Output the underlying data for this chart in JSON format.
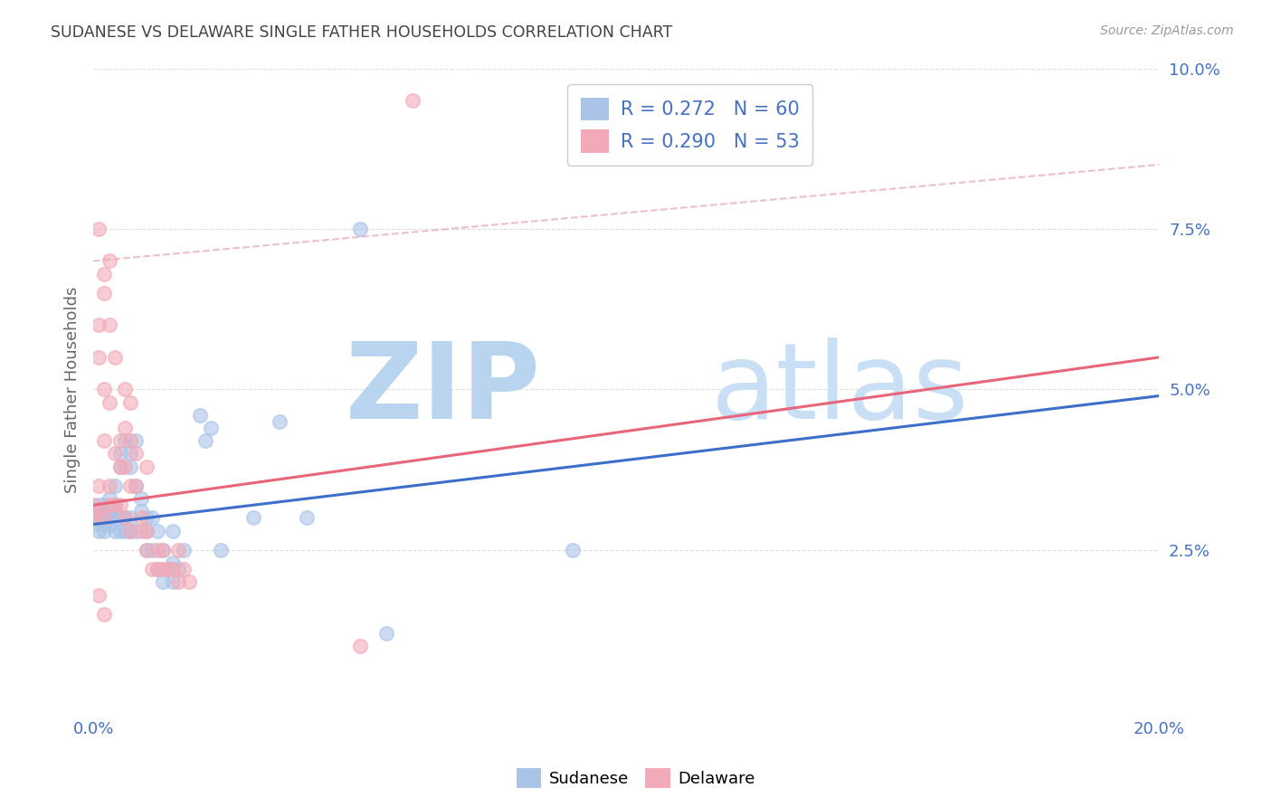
{
  "title": "SUDANESE VS DELAWARE SINGLE FATHER HOUSEHOLDS CORRELATION CHART",
  "source": "Source: ZipAtlas.com",
  "ylabel": "Single Father Households",
  "xlim": [
    0,
    0.2
  ],
  "ylim": [
    0,
    0.1
  ],
  "sudanese_color": "#aac4e8",
  "delaware_color": "#f2aab8",
  "sudanese_line_color": "#3b6fc9",
  "delaware_line_color": "#e8657a",
  "dashed_line_color": "#f2aab8",
  "sudanese_R": 0.272,
  "sudanese_N": 60,
  "delaware_R": 0.29,
  "delaware_N": 53,
  "watermark_zip": "ZIP",
  "watermark_atlas": "atlas",
  "watermark_color": "#cce0f5",
  "legend_labels": [
    "Sudanese",
    "Delaware"
  ],
  "tick_color": "#4472c4",
  "title_color": "#444444",
  "ylabel_color": "#666666",
  "source_color": "#999999",
  "sudanese_scatter": [
    [
      0.0,
      0.031
    ],
    [
      0.0,
      0.029
    ],
    [
      0.0,
      0.03
    ],
    [
      0.001,
      0.032
    ],
    [
      0.001,
      0.028
    ],
    [
      0.001,
      0.03
    ],
    [
      0.001,
      0.031
    ],
    [
      0.002,
      0.028
    ],
    [
      0.002,
      0.032
    ],
    [
      0.002,
      0.03
    ],
    [
      0.002,
      0.029
    ],
    [
      0.003,
      0.031
    ],
    [
      0.003,
      0.033
    ],
    [
      0.003,
      0.029
    ],
    [
      0.003,
      0.03
    ],
    [
      0.004,
      0.035
    ],
    [
      0.004,
      0.028
    ],
    [
      0.004,
      0.031
    ],
    [
      0.004,
      0.032
    ],
    [
      0.005,
      0.04
    ],
    [
      0.005,
      0.03
    ],
    [
      0.005,
      0.028
    ],
    [
      0.005,
      0.038
    ],
    [
      0.006,
      0.042
    ],
    [
      0.006,
      0.03
    ],
    [
      0.006,
      0.028
    ],
    [
      0.007,
      0.028
    ],
    [
      0.007,
      0.03
    ],
    [
      0.007,
      0.04
    ],
    [
      0.007,
      0.038
    ],
    [
      0.008,
      0.035
    ],
    [
      0.008,
      0.042
    ],
    [
      0.008,
      0.028
    ],
    [
      0.009,
      0.033
    ],
    [
      0.009,
      0.031
    ],
    [
      0.01,
      0.028
    ],
    [
      0.01,
      0.03
    ],
    [
      0.01,
      0.025
    ],
    [
      0.011,
      0.03
    ],
    [
      0.011,
      0.025
    ],
    [
      0.012,
      0.028
    ],
    [
      0.012,
      0.022
    ],
    [
      0.013,
      0.025
    ],
    [
      0.013,
      0.02
    ],
    [
      0.014,
      0.022
    ],
    [
      0.015,
      0.023
    ],
    [
      0.015,
      0.02
    ],
    [
      0.015,
      0.028
    ],
    [
      0.016,
      0.022
    ],
    [
      0.017,
      0.025
    ],
    [
      0.02,
      0.046
    ],
    [
      0.021,
      0.042
    ],
    [
      0.022,
      0.044
    ],
    [
      0.024,
      0.025
    ],
    [
      0.03,
      0.03
    ],
    [
      0.035,
      0.045
    ],
    [
      0.04,
      0.03
    ],
    [
      0.05,
      0.075
    ],
    [
      0.09,
      0.025
    ],
    [
      0.055,
      0.012
    ]
  ],
  "delaware_scatter": [
    [
      0.0,
      0.032
    ],
    [
      0.0,
      0.03
    ],
    [
      0.001,
      0.035
    ],
    [
      0.001,
      0.055
    ],
    [
      0.001,
      0.06
    ],
    [
      0.001,
      0.031
    ],
    [
      0.002,
      0.05
    ],
    [
      0.002,
      0.042
    ],
    [
      0.002,
      0.03
    ],
    [
      0.002,
      0.065
    ],
    [
      0.003,
      0.06
    ],
    [
      0.003,
      0.048
    ],
    [
      0.003,
      0.035
    ],
    [
      0.003,
      0.032
    ],
    [
      0.004,
      0.04
    ],
    [
      0.004,
      0.032
    ],
    [
      0.004,
      0.055
    ],
    [
      0.005,
      0.038
    ],
    [
      0.005,
      0.032
    ],
    [
      0.005,
      0.042
    ],
    [
      0.006,
      0.05
    ],
    [
      0.006,
      0.038
    ],
    [
      0.006,
      0.03
    ],
    [
      0.006,
      0.044
    ],
    [
      0.007,
      0.042
    ],
    [
      0.007,
      0.028
    ],
    [
      0.007,
      0.048
    ],
    [
      0.007,
      0.035
    ],
    [
      0.008,
      0.035
    ],
    [
      0.008,
      0.04
    ],
    [
      0.009,
      0.03
    ],
    [
      0.009,
      0.028
    ],
    [
      0.01,
      0.038
    ],
    [
      0.01,
      0.028
    ],
    [
      0.01,
      0.025
    ],
    [
      0.011,
      0.022
    ],
    [
      0.012,
      0.022
    ],
    [
      0.012,
      0.025
    ],
    [
      0.013,
      0.022
    ],
    [
      0.013,
      0.025
    ],
    [
      0.014,
      0.022
    ],
    [
      0.015,
      0.022
    ],
    [
      0.016,
      0.025
    ],
    [
      0.016,
      0.02
    ],
    [
      0.017,
      0.022
    ],
    [
      0.018,
      0.02
    ],
    [
      0.001,
      0.075
    ],
    [
      0.002,
      0.068
    ],
    [
      0.003,
      0.07
    ],
    [
      0.06,
      0.095
    ],
    [
      0.05,
      0.01
    ],
    [
      0.001,
      0.018
    ],
    [
      0.002,
      0.015
    ]
  ]
}
